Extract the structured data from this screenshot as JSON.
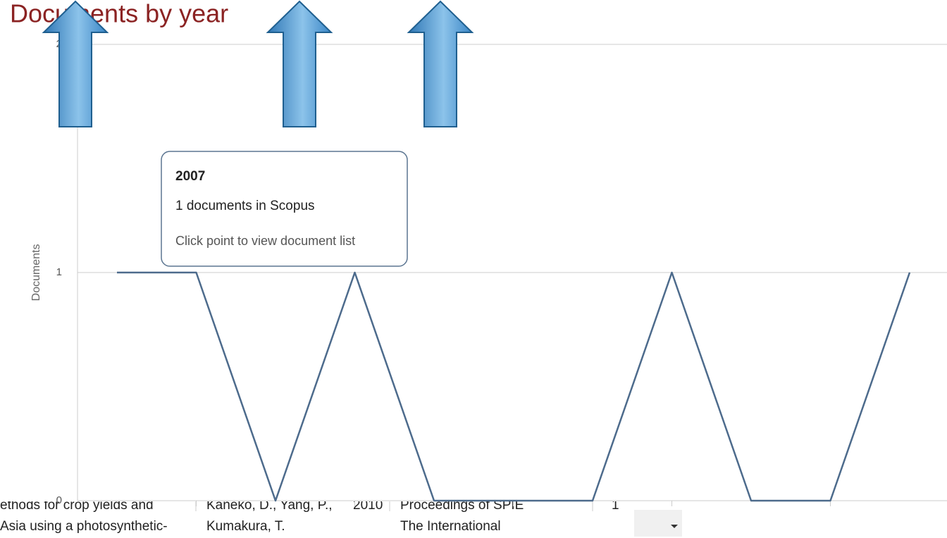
{
  "chart_data": {
    "type": "line",
    "title": "Documents by year",
    "y_label": "Documents",
    "categories": [
      null,
      null,
      null,
      null,
      null,
      null,
      null,
      null,
      null,
      null,
      null
    ],
    "values": [
      1,
      1,
      0,
      1,
      0,
      0,
      0,
      1,
      0,
      0,
      1
    ],
    "color": "#4d6b8c",
    "ylim": [
      0,
      2
    ],
    "yticks": [
      0,
      1,
      2
    ],
    "grid": true
  },
  "tooltip": {
    "title": "2007",
    "text": "1 documents in Scopus",
    "hint": "Click point to view document list"
  },
  "table": {
    "cells": [
      "ethods for crop yields and",
      "Asia using a photosynthetic-",
      "Kaneko, D., Yang, P.,",
      "Kumakura, T.",
      "2010",
      "Proceedings of SPIE",
      "The International",
      "1"
    ]
  }
}
